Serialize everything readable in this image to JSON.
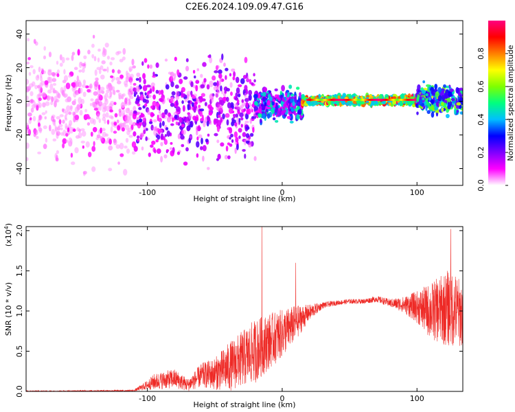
{
  "title": "C2E6.2024.109.09.47.G16",
  "colors": {
    "snr_line": "#ee2a26",
    "spectrogram_background": "#ffffff",
    "colorbar_stops": [
      "#ffffff",
      "#ff00ff",
      "#7f00ff",
      "#0000ff",
      "#00bfff",
      "#00ff7f",
      "#7fff00",
      "#ffff00",
      "#ff7f00",
      "#ff0000",
      "#ff0080"
    ]
  },
  "chart_data": [
    {
      "type": "heatmap",
      "name": "spectrogram",
      "xlabel": "Height of straight line (km)",
      "ylabel": "Frequency (Hz)",
      "xlim": [
        -190,
        134
      ],
      "ylim": [
        -50,
        48
      ],
      "x_ticks": [
        -100,
        0,
        100
      ],
      "x_tick_labels": [
        "-100",
        "0",
        "100"
      ],
      "y_ticks": [
        -40,
        -20,
        0,
        20,
        40
      ],
      "y_tick_labels": [
        "-40",
        "-20",
        "0",
        "20",
        "40"
      ],
      "colorbar": {
        "label": "Normalized spectral amplitude",
        "range": [
          0,
          1
        ],
        "ticks": [
          0.0,
          0.2,
          0.4,
          0.6,
          0.8
        ],
        "tick_labels": [
          "0.0",
          "0.2",
          "0.4",
          "0.6",
          "0.8"
        ]
      },
      "regions": [
        {
          "x_range": [
            -190,
            -110
          ],
          "freq_range": [
            -50,
            48
          ],
          "amplitude": [
            0.0,
            0.1
          ]
        },
        {
          "x_range": [
            -110,
            -20
          ],
          "freq_range": [
            -45,
            35
          ],
          "amplitude": [
            0.05,
            0.25
          ]
        },
        {
          "x_range": [
            -20,
            15
          ],
          "freq_range": [
            -15,
            10
          ],
          "amplitude": [
            0.1,
            0.5
          ]
        },
        {
          "x_range": [
            15,
            100
          ],
          "freq_range": [
            -3,
            4
          ],
          "amplitude": [
            0.4,
            1.0
          ]
        },
        {
          "x_range": [
            100,
            134
          ],
          "freq_range": [
            -10,
            12
          ],
          "amplitude": [
            0.2,
            0.7
          ]
        }
      ]
    },
    {
      "type": "line",
      "name": "snr",
      "xlabel": "Height of straight line (km)",
      "ylabel": "SNR (10 * v/v)",
      "y_scale_label": "(x10",
      "y_scale_exponent": "4",
      "y_scale_suffix": ")",
      "xlim": [
        -190,
        134
      ],
      "ylim": [
        0,
        2.05
      ],
      "x_ticks": [
        -100,
        0,
        100
      ],
      "x_tick_labels": [
        "-100",
        "0",
        "100"
      ],
      "y_ticks": [
        0.0,
        0.5,
        1.0,
        1.5,
        2.0
      ],
      "y_tick_labels": [
        "0.0",
        "0.5",
        "1.0",
        "1.5",
        "2.0"
      ],
      "envelope": {
        "x": [
          -190,
          -110,
          -100,
          -95,
          -80,
          -70,
          -60,
          -50,
          -40,
          -30,
          -20,
          -10,
          0,
          10,
          20,
          30,
          40,
          50,
          60,
          70,
          80,
          90,
          100,
          110,
          120,
          125,
          134
        ],
        "mean": [
          0.0,
          0.01,
          0.08,
          0.12,
          0.16,
          0.08,
          0.2,
          0.22,
          0.3,
          0.4,
          0.5,
          0.62,
          0.72,
          0.85,
          0.98,
          1.07,
          1.1,
          1.12,
          1.12,
          1.15,
          1.1,
          1.08,
          1.05,
          1.0,
          1.02,
          1.05,
          0.95
        ],
        "spread": [
          0.01,
          0.01,
          0.06,
          0.1,
          0.12,
          0.08,
          0.15,
          0.2,
          0.3,
          0.35,
          0.4,
          0.35,
          0.3,
          0.22,
          0.1,
          0.04,
          0.03,
          0.03,
          0.03,
          0.04,
          0.05,
          0.1,
          0.2,
          0.35,
          0.45,
          0.5,
          0.4
        ]
      },
      "spikes": [
        {
          "x": -15,
          "y": 2.05
        },
        {
          "x": 10,
          "y": 1.6
        },
        {
          "x": 125,
          "y": 2.02
        }
      ]
    }
  ]
}
